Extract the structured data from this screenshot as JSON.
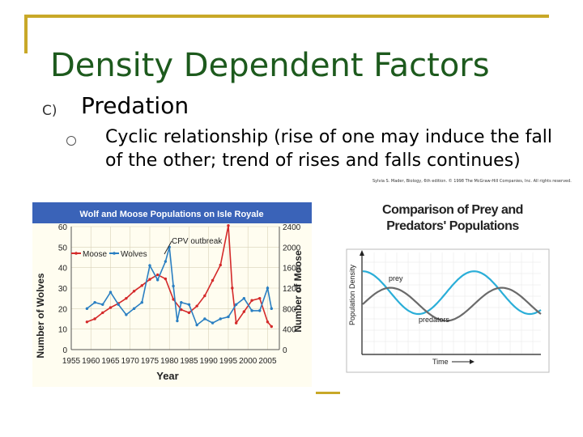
{
  "slide": {
    "title": "Density Dependent Factors",
    "bullet1_marker": "C)",
    "bullet1": "Predation",
    "bullet2": "Cyclic relationship (rise of one may induce the fall of the other; trend of rises and falls continues)"
  },
  "colors": {
    "title": "#1d5a1d",
    "frame_accent": "#c8a828",
    "chart_banner": "#3a63b8",
    "moose": "#d42a2a",
    "wolves": "#2a7fc2",
    "prey_line": "#2aaed8",
    "predator_line": "#6a6a6a"
  },
  "chart_data": [
    {
      "type": "line",
      "title": "Wolf and Moose Populations on Isle Royale",
      "xlabel": "Year",
      "ylabel_left": "Number of Wolves",
      "ylabel_right": "Number of Moose",
      "x_ticks": [
        "1955",
        "1960",
        "1965",
        "1970",
        "1975",
        "1980",
        "1985",
        "1990",
        "1995",
        "2000",
        "2005"
      ],
      "y_left_ticks": [
        "0",
        "10",
        "20",
        "30",
        "40",
        "50",
        "60"
      ],
      "y_right_ticks": [
        "0",
        "400",
        "800",
        "1200",
        "1600",
        "2000",
        "2400"
      ],
      "xlim": [
        1955,
        2008
      ],
      "ylim_left": [
        0,
        60
      ],
      "ylim_right": [
        0,
        2400
      ],
      "annotation": "CPV outbreak",
      "legend": "top-left",
      "grid": true,
      "series": [
        {
          "name": "Moose",
          "axis": "right",
          "x": [
            1959,
            1961,
            1963,
            1965,
            1967,
            1969,
            1971,
            1973,
            1975,
            1977,
            1979,
            1981,
            1983,
            1985,
            1987,
            1989,
            1991,
            1993,
            1995,
            1996,
            1997,
            1999,
            2001,
            2003,
            2005,
            2006
          ],
          "values": [
            540,
            600,
            720,
            820,
            900,
            1000,
            1140,
            1250,
            1370,
            1460,
            1380,
            980,
            780,
            720,
            850,
            1050,
            1350,
            1650,
            2420,
            1200,
            520,
            740,
            960,
            1000,
            540,
            450
          ]
        },
        {
          "name": "Wolves",
          "axis": "left",
          "x": [
            1959,
            1961,
            1963,
            1965,
            1967,
            1969,
            1971,
            1973,
            1975,
            1977,
            1979,
            1980,
            1981,
            1982,
            1983,
            1985,
            1987,
            1989,
            1991,
            1993,
            1995,
            1997,
            1999,
            2001,
            2003,
            2005,
            2006
          ],
          "values": [
            20,
            23,
            22,
            28,
            22,
            17,
            20,
            23,
            41,
            34,
            43,
            50,
            31,
            14,
            23,
            22,
            12,
            15,
            13,
            15,
            16,
            22,
            25,
            19,
            19,
            30,
            20
          ]
        }
      ]
    },
    {
      "type": "line",
      "title": "Comparison of Prey and Predators' Populations",
      "credit": "Sylvia S. Mader, Biology, 6th edition. © 1998 The McGraw-Hill Companies, Inc. All rights reserved.",
      "xlabel": "Time",
      "ylabel": "Population Density",
      "series": [
        {
          "name": "prey",
          "shape": "sinusoid",
          "periods": 1.6,
          "phase": 0,
          "level": 0.62,
          "amplitude": 0.22
        },
        {
          "name": "predators",
          "shape": "sinusoid",
          "periods": 1.6,
          "phase": 0.25,
          "level": 0.5,
          "amplitude": 0.17
        }
      ]
    }
  ]
}
